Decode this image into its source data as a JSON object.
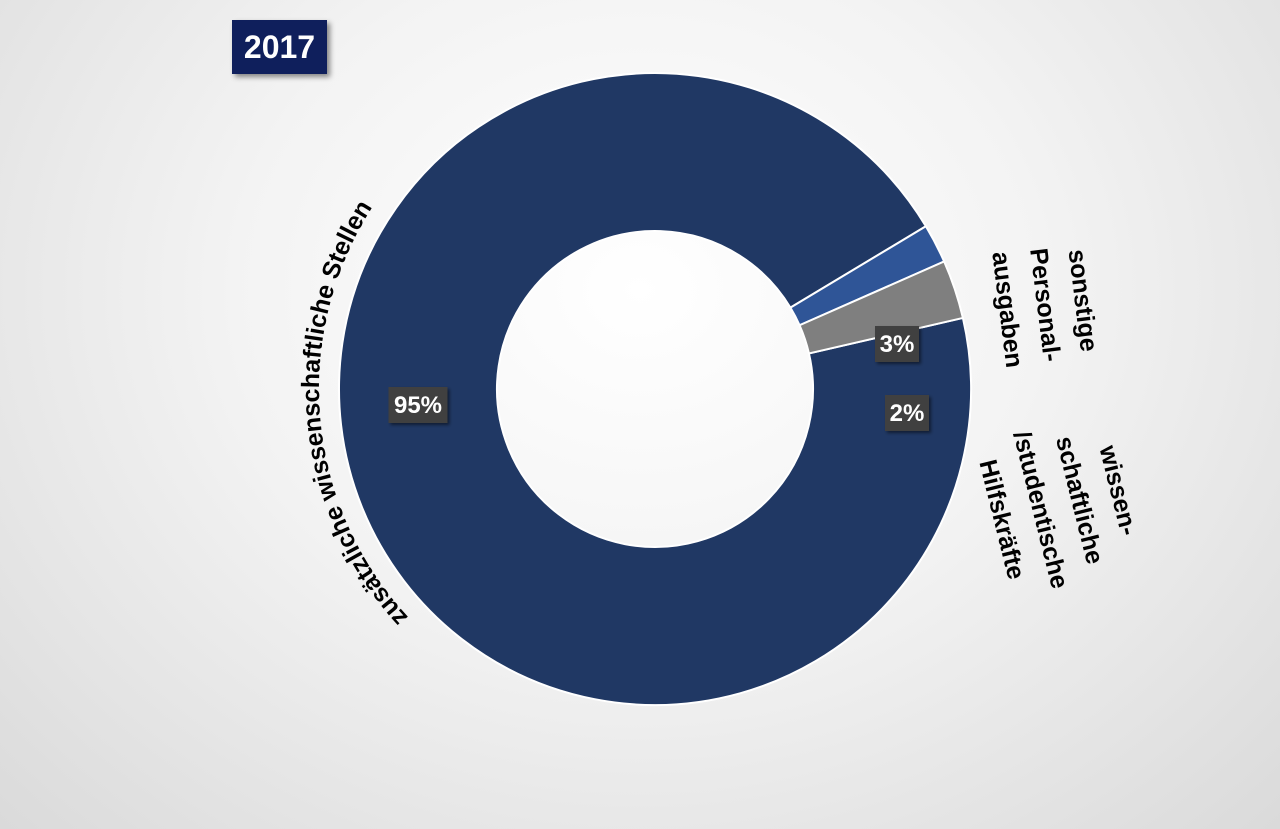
{
  "chart_data": {
    "type": "pie",
    "title": "2017",
    "slices": [
      {
        "category": "zusätzliche wissenschaftliche Stellen",
        "label_lines": [
          "zusätzliche wissenschaftliche Stellen"
        ],
        "value": 95,
        "value_label": "95%",
        "color": "#203864"
      },
      {
        "category": "sonstige Personal-ausgaben",
        "label_lines": [
          "sonstige",
          "Personal-",
          "ausgaben"
        ],
        "value": 3,
        "value_label": "3%",
        "color": "#7f7f7f"
      },
      {
        "category": "wissen-schaftliche /studentische Hilfskräfte",
        "label_lines": [
          "wissen-",
          "schaftliche",
          "/studentische",
          "Hilfskräfte"
        ],
        "value": 2,
        "value_label": "2%",
        "color": "#2f5597"
      }
    ],
    "donut": true,
    "legend": "none",
    "data_label_background": "#404040",
    "title_background": "#0f1f5c"
  }
}
